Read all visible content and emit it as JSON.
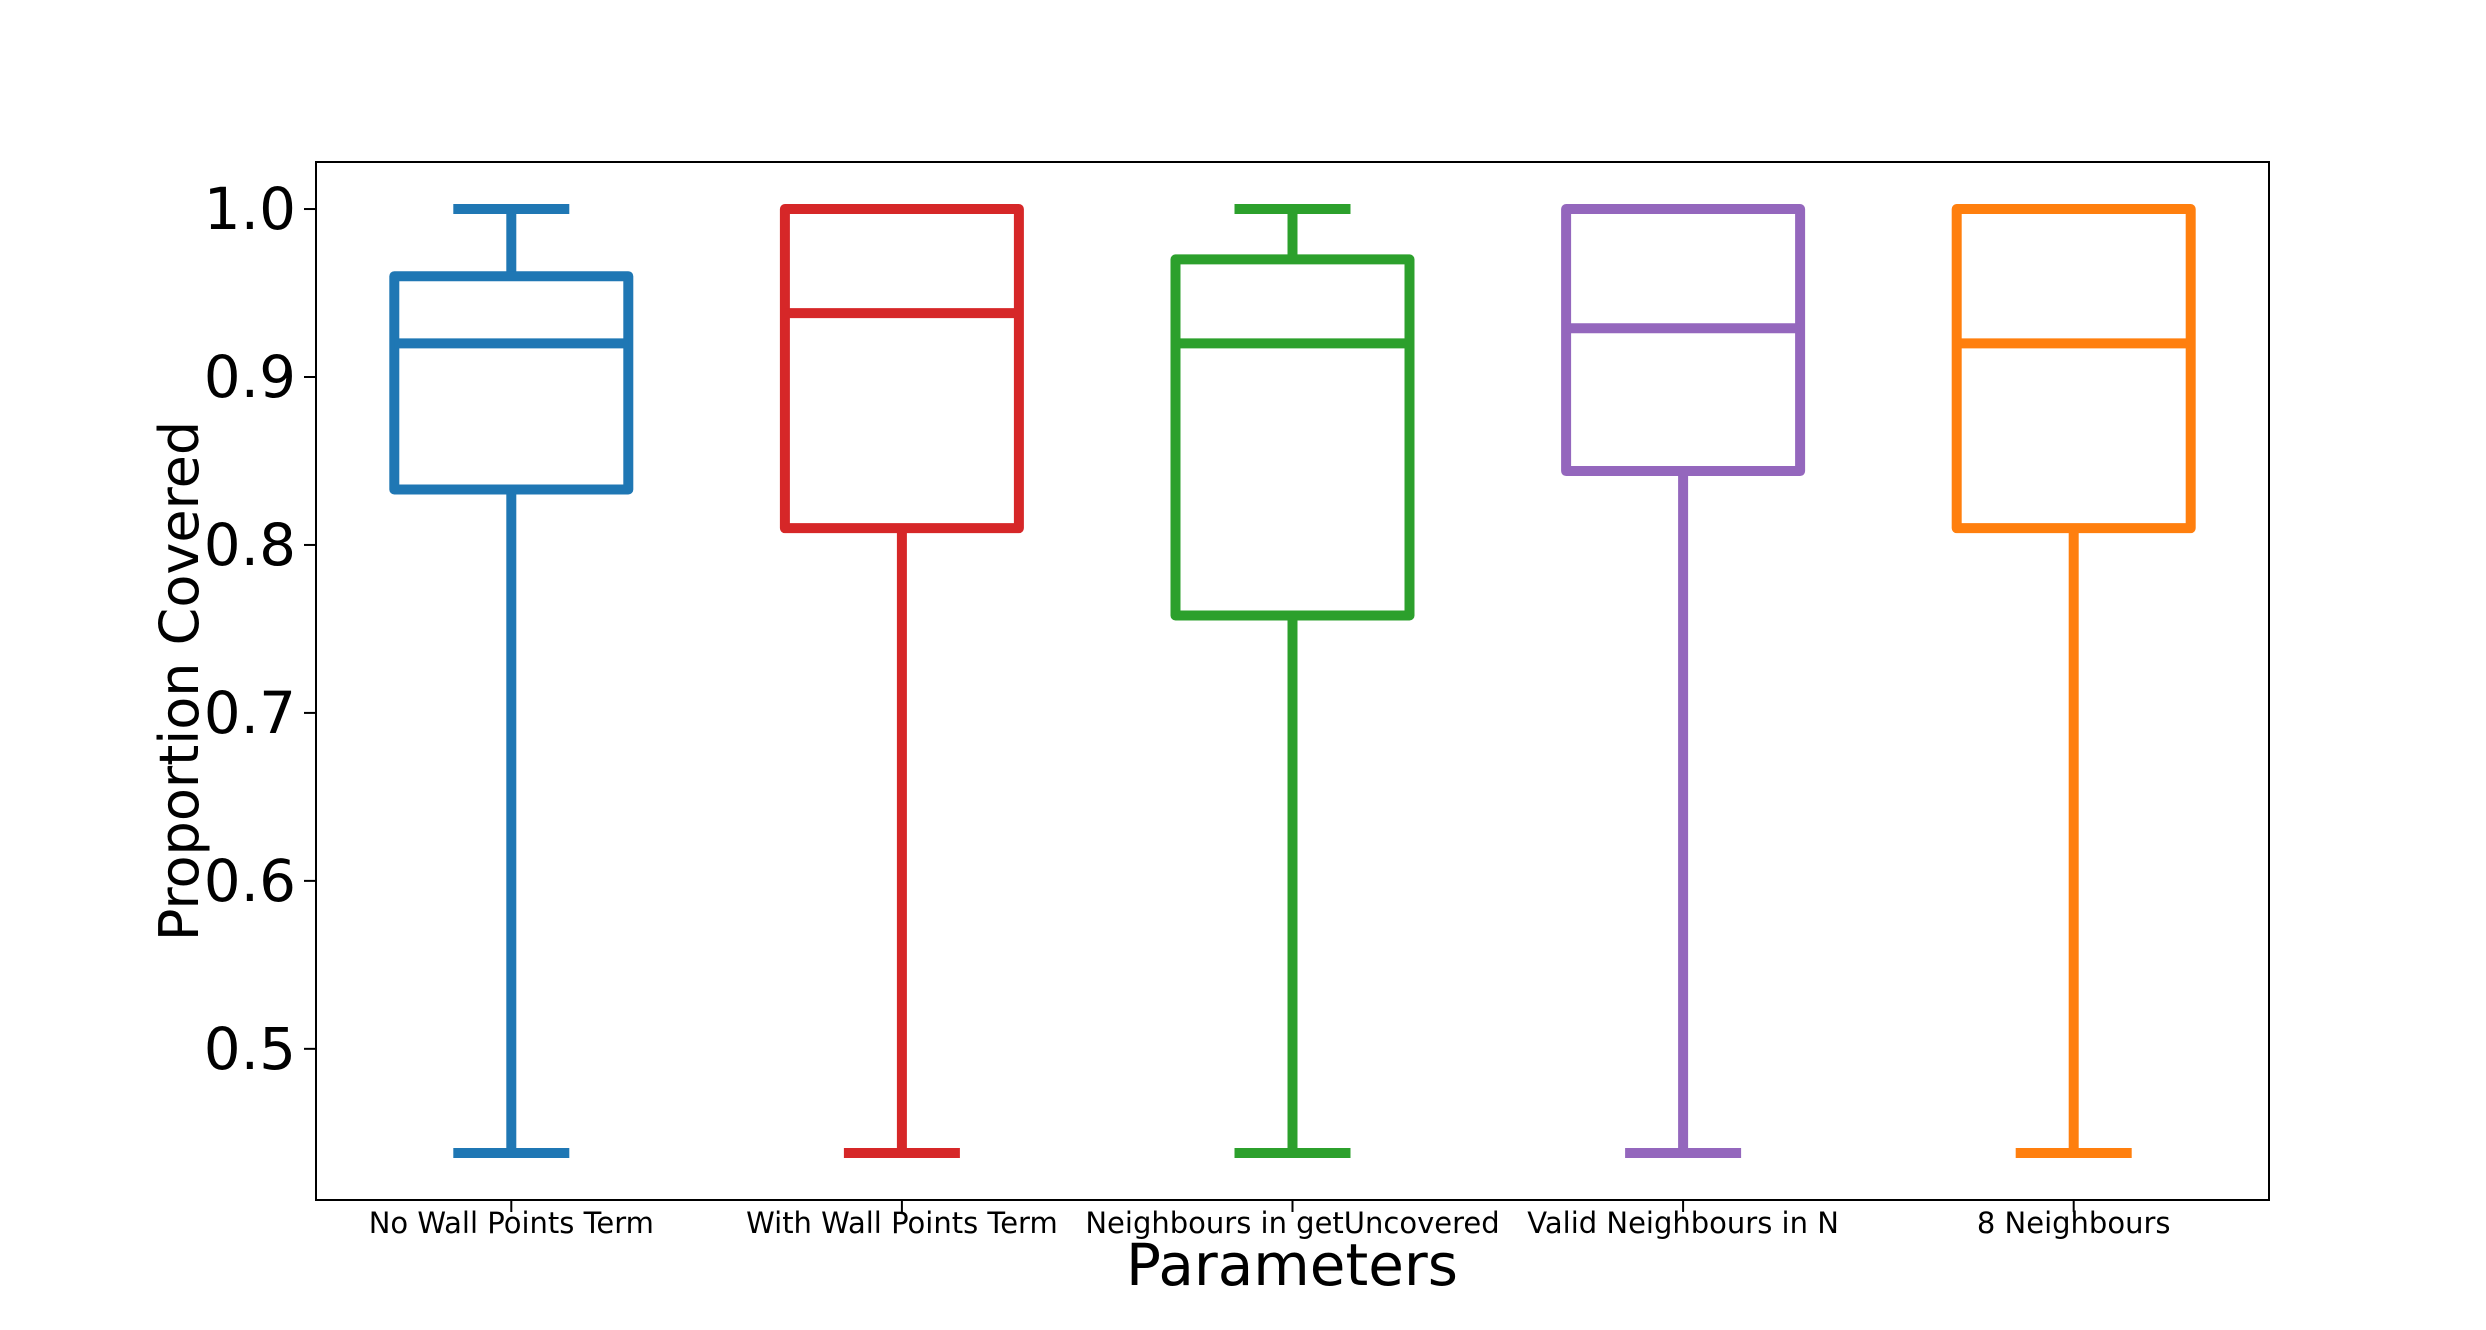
{
  "chart_data": {
    "type": "box",
    "title": "",
    "xlabel": "Parameters",
    "ylabel": "Proportion Covered",
    "ylim": [
      0.41,
      1.028
    ],
    "yticks": [
      {
        "value": 0.5,
        "label": "0.5"
      },
      {
        "value": 0.6,
        "label": "0.6"
      },
      {
        "value": 0.7,
        "label": "0.7"
      },
      {
        "value": 0.8,
        "label": "0.8"
      },
      {
        "value": 0.9,
        "label": "0.9"
      },
      {
        "value": 1.0,
        "label": "1.0"
      }
    ],
    "grid": false,
    "legend": "none",
    "boxes": [
      {
        "label": "No Wall Points Term",
        "color": "#1f77b4",
        "whisker_low": 0.438,
        "q1": 0.833,
        "median": 0.92,
        "q3": 0.96,
        "whisker_high": 1.0
      },
      {
        "label": "With Wall Points Term",
        "color": "#d62728",
        "whisker_low": 0.438,
        "q1": 0.81,
        "median": 0.938,
        "q3": 1.0,
        "whisker_high": 1.0
      },
      {
        "label": "Neighbours in getUncovered",
        "color": "#2ca02c",
        "whisker_low": 0.438,
        "q1": 0.758,
        "median": 0.92,
        "q3": 0.97,
        "whisker_high": 1.0
      },
      {
        "label": "Valid Neighbours in N",
        "color": "#9467bd",
        "whisker_low": 0.438,
        "q1": 0.844,
        "median": 0.929,
        "q3": 1.0,
        "whisker_high": 1.0
      },
      {
        "label": "8 Neighbours",
        "color": "#ff7f0e",
        "whisker_low": 0.438,
        "q1": 0.81,
        "median": 0.92,
        "q3": 1.0,
        "whisker_high": 1.0
      }
    ]
  }
}
